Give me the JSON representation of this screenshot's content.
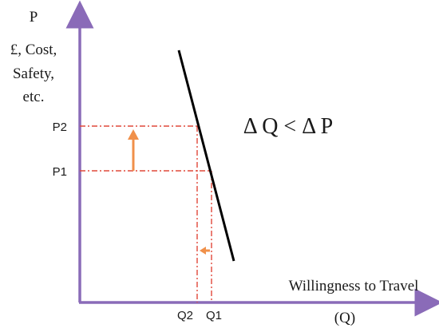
{
  "axis_labels": {
    "y_symbol": "P",
    "y_line1": "£, Cost,",
    "y_line2": "Safety,",
    "y_line3": "etc.",
    "x_title": "Willingness to Travel",
    "x_symbol": "(Q)"
  },
  "tick_labels": {
    "p2": "P2",
    "p1": "P1",
    "q2": "Q2",
    "q1": "Q1"
  },
  "annotation": "Δ Q < Δ P",
  "colors": {
    "axis": "#8a6bb8",
    "curve": "#000000",
    "guide": "#e0483a",
    "arrow": "#f0904a"
  }
}
